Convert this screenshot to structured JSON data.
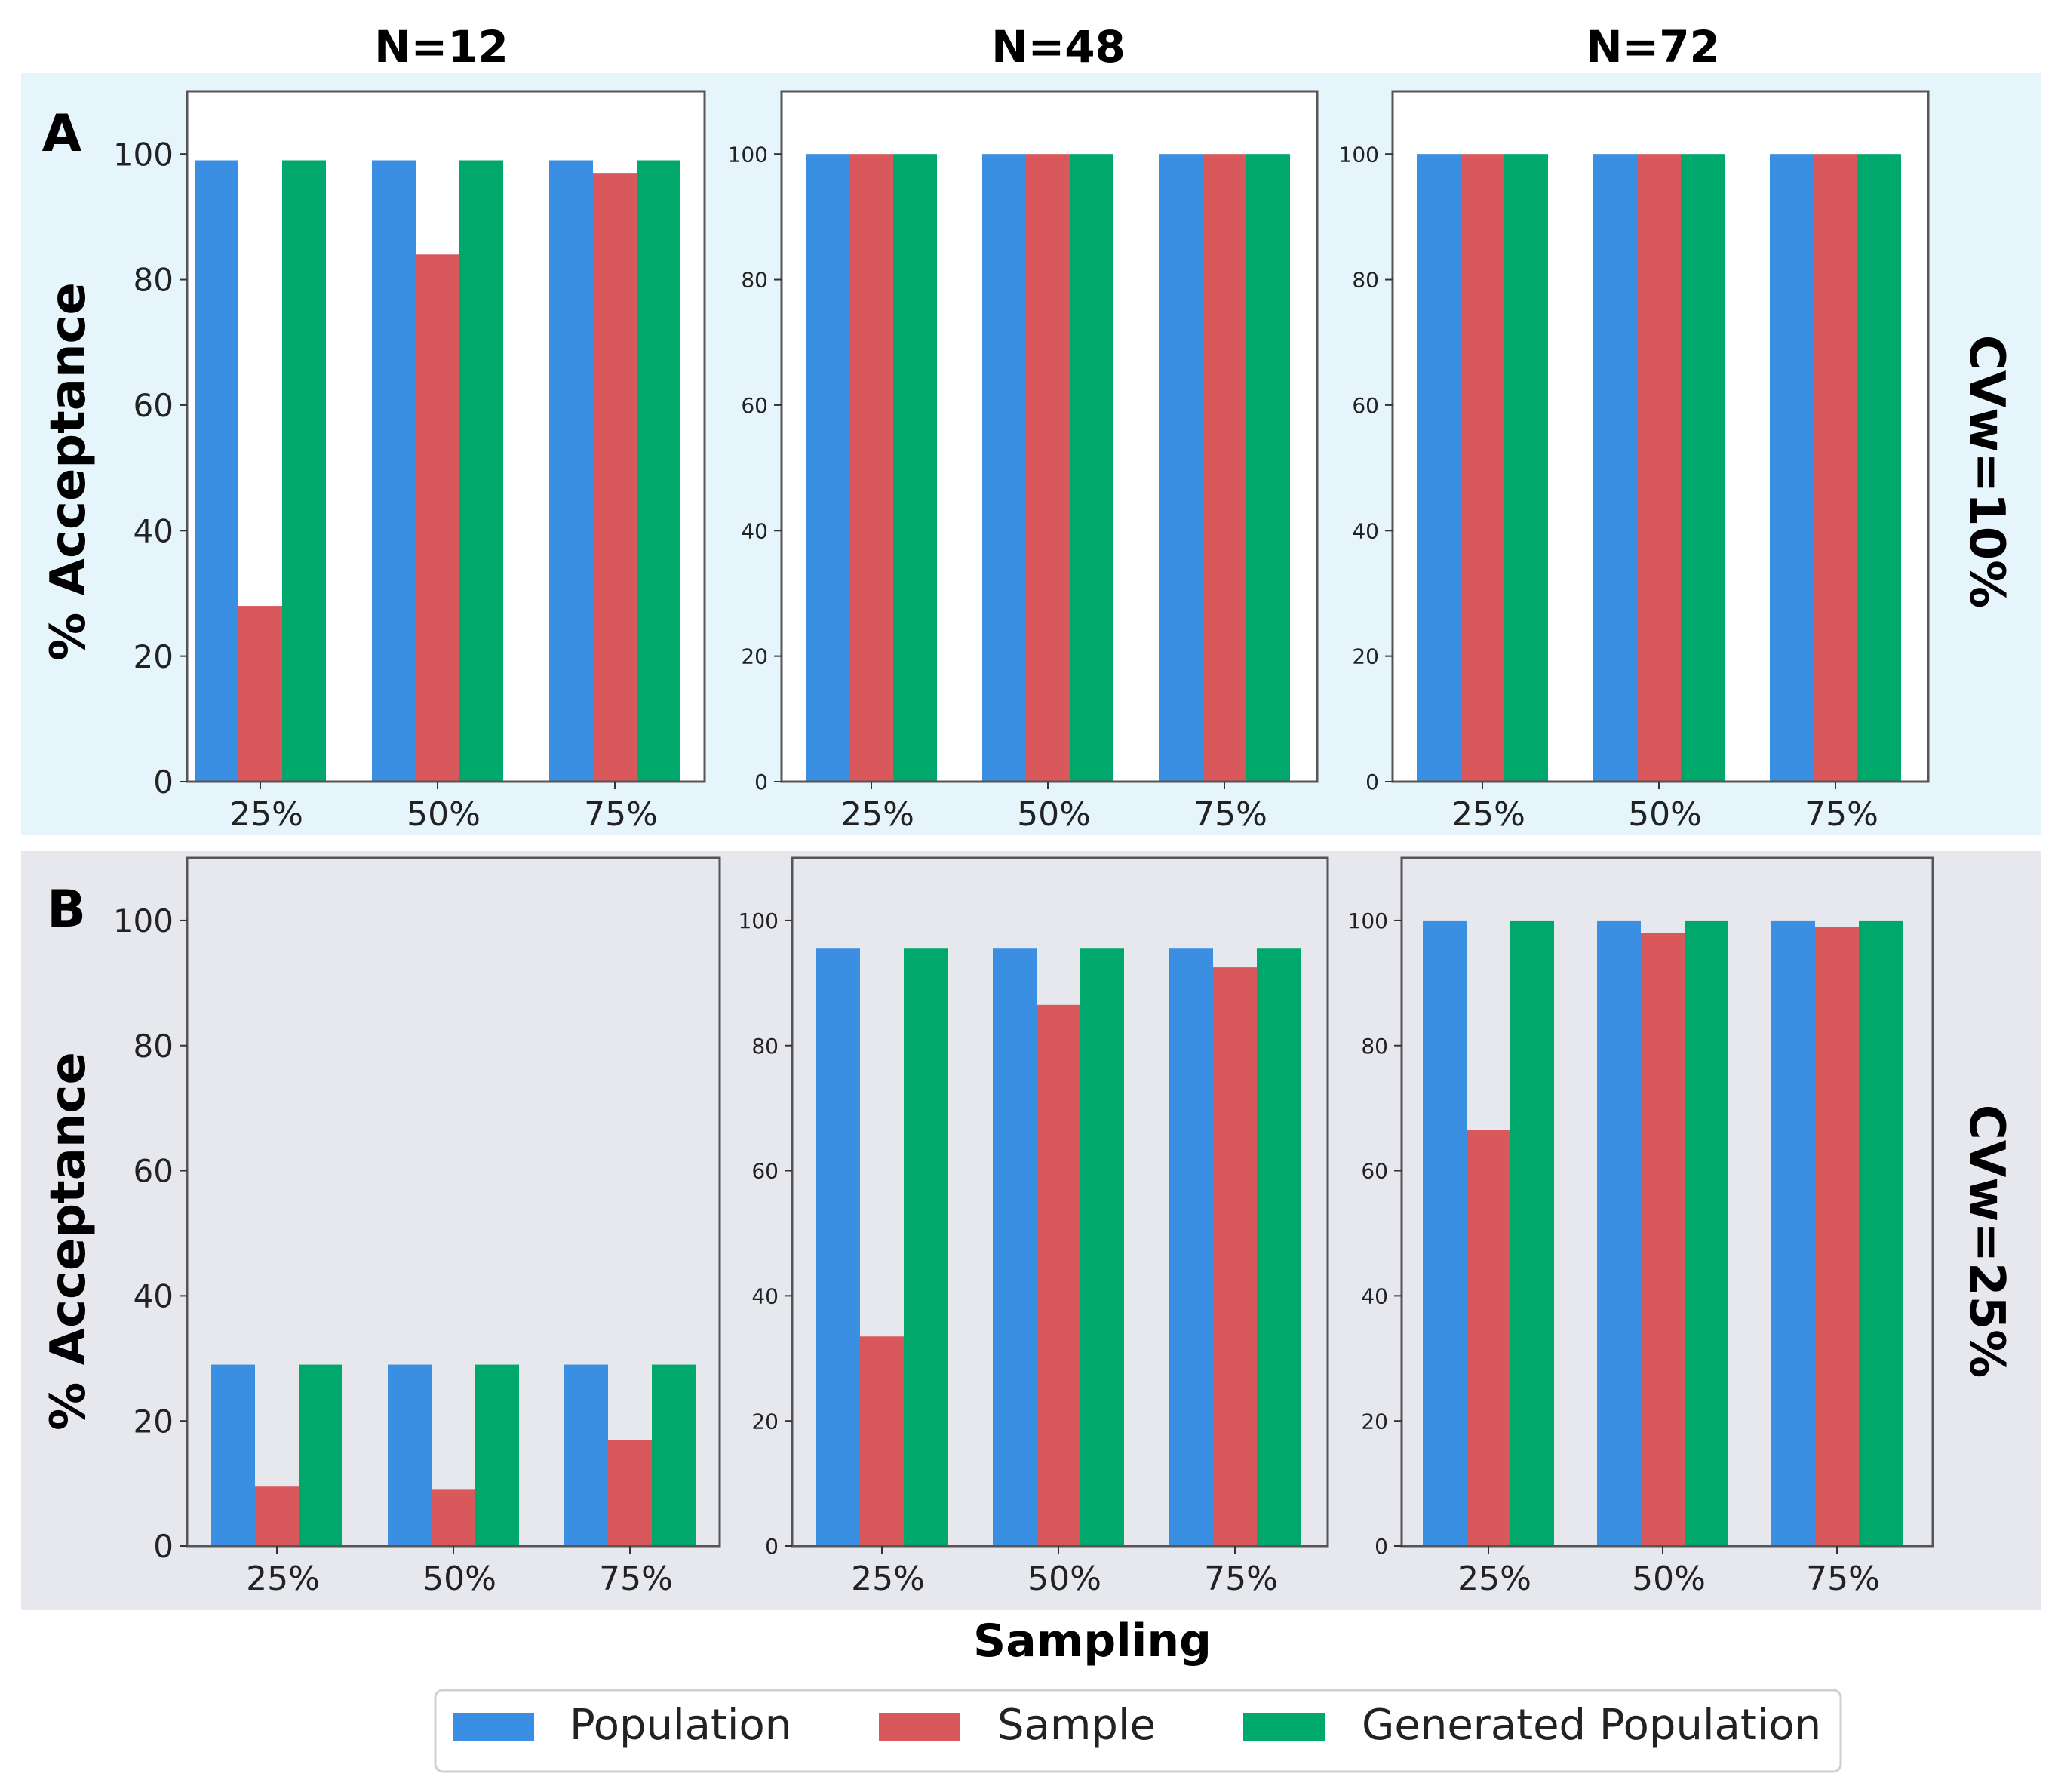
{
  "column_titles": [
    "N=12",
    "N=48",
    "N=72"
  ],
  "row_labels": [
    "A",
    "B"
  ],
  "row_side_labels": [
    "CVw=10%",
    "CVw=25%"
  ],
  "ylabel": "% Acceptance",
  "xlabel": "Sampling",
  "legend": [
    {
      "name": "Population",
      "color": "#3a8fe3"
    },
    {
      "name": "Sample",
      "color": "#d9585c"
    },
    {
      "name": "Generated Population",
      "color": "#00a86b"
    }
  ],
  "colors": {
    "row_a_bg": "#e6f4fb",
    "row_b_bg": "#e6e8ee",
    "population": "#3a8fe3",
    "sample": "#d9585c",
    "generated": "#00a86b"
  },
  "chart_data": [
    {
      "type": "bar",
      "panel": "A / N=12",
      "categories": [
        "25%",
        "50%",
        "75%"
      ],
      "ylim": [
        0,
        110
      ],
      "yticks": [
        "0",
        "20",
        "40",
        "60",
        "80",
        "100"
      ],
      "series": [
        {
          "name": "Population",
          "values": [
            99,
            99,
            99
          ]
        },
        {
          "name": "Sample",
          "values": [
            28,
            84,
            97
          ]
        },
        {
          "name": "Generated Population",
          "values": [
            99,
            99,
            99
          ]
        }
      ]
    },
    {
      "type": "bar",
      "panel": "A / N=48",
      "categories": [
        "25%",
        "50%",
        "75%"
      ],
      "ylim": [
        0,
        110
      ],
      "yticks": [
        "0",
        "20",
        "40",
        "60",
        "80",
        "100"
      ],
      "series": [
        {
          "name": "Population",
          "values": [
            100,
            100,
            100
          ]
        },
        {
          "name": "Sample",
          "values": [
            100,
            100,
            100
          ]
        },
        {
          "name": "Generated Population",
          "values": [
            100,
            100,
            100
          ]
        }
      ]
    },
    {
      "type": "bar",
      "panel": "A / N=72",
      "categories": [
        "25%",
        "50%",
        "75%"
      ],
      "ylim": [
        0,
        110
      ],
      "yticks": [
        "0",
        "20",
        "40",
        "60",
        "80",
        "100"
      ],
      "series": [
        {
          "name": "Population",
          "values": [
            100,
            100,
            100
          ]
        },
        {
          "name": "Sample",
          "values": [
            100,
            100,
            100
          ]
        },
        {
          "name": "Generated Population",
          "values": [
            100,
            100,
            100
          ]
        }
      ]
    },
    {
      "type": "bar",
      "panel": "B / N=12",
      "categories": [
        "25%",
        "50%",
        "75%"
      ],
      "ylim": [
        0,
        110
      ],
      "yticks": [
        "0",
        "20",
        "40",
        "60",
        "80",
        "100"
      ],
      "series": [
        {
          "name": "Population",
          "values": [
            29,
            29,
            29
          ]
        },
        {
          "name": "Sample",
          "values": [
            9.5,
            9,
            17
          ]
        },
        {
          "name": "Generated Population",
          "values": [
            29,
            29,
            29
          ]
        }
      ]
    },
    {
      "type": "bar",
      "panel": "B / N=48",
      "categories": [
        "25%",
        "50%",
        "75%"
      ],
      "ylim": [
        0,
        110
      ],
      "yticks": [
        "0",
        "20",
        "40",
        "60",
        "80",
        "100"
      ],
      "series": [
        {
          "name": "Population",
          "values": [
            95.5,
            95.5,
            95.5
          ]
        },
        {
          "name": "Sample",
          "values": [
            33.5,
            86.5,
            92.5
          ]
        },
        {
          "name": "Generated Population",
          "values": [
            95.5,
            95.5,
            95.5
          ]
        }
      ]
    },
    {
      "type": "bar",
      "panel": "B / N=72",
      "categories": [
        "25%",
        "50%",
        "75%"
      ],
      "ylim": [
        0,
        110
      ],
      "yticks": [
        "0",
        "20",
        "40",
        "60",
        "80",
        "100"
      ],
      "series": [
        {
          "name": "Population",
          "values": [
            100,
            100,
            100
          ]
        },
        {
          "name": "Sample",
          "values": [
            66.5,
            98,
            99
          ]
        },
        {
          "name": "Generated Population",
          "values": [
            100,
            100,
            100
          ]
        }
      ]
    }
  ]
}
